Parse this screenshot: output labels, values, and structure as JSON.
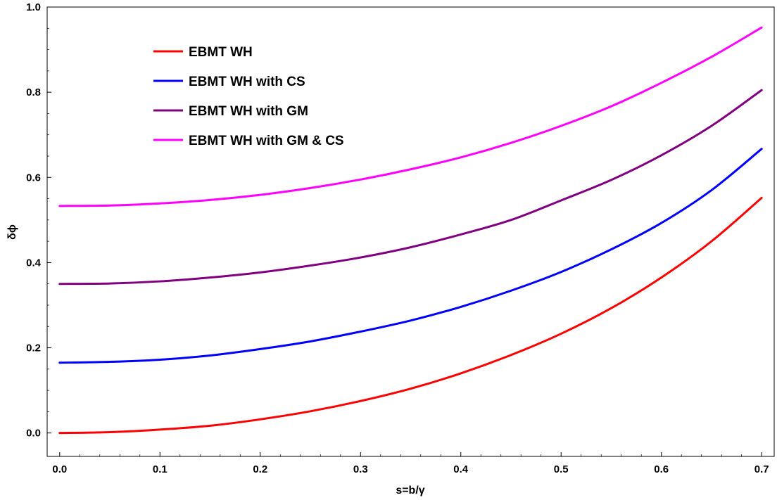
{
  "chart_data": {
    "type": "line",
    "xlabel": "s=b/γ",
    "ylabel": "δϕ",
    "xlim": [
      -0.0125,
      0.7125
    ],
    "ylim": [
      -0.055,
      1.0
    ],
    "xticks": [
      0.0,
      0.1,
      0.2,
      0.3,
      0.4,
      0.5,
      0.6,
      0.7
    ],
    "yticks": [
      0.0,
      0.2,
      0.4,
      0.6,
      0.8,
      1.0
    ],
    "xtick_labels": [
      "0.0",
      "0.1",
      "0.2",
      "0.3",
      "0.4",
      "0.5",
      "0.6",
      "0.7"
    ],
    "ytick_labels": [
      "0.0",
      "0.2",
      "0.4",
      "0.6",
      "0.8",
      "1.0"
    ],
    "grid": false,
    "legend_position": "top-left",
    "x": [
      0.0,
      0.05,
      0.1,
      0.15,
      0.2,
      0.25,
      0.3,
      0.35,
      0.4,
      0.45,
      0.5,
      0.55,
      0.6,
      0.65,
      0.7
    ],
    "series": [
      {
        "name": "EBMT WH",
        "color": "#ff0000",
        "values": [
          0.0,
          0.002,
          0.008,
          0.017,
          0.032,
          0.051,
          0.075,
          0.104,
          0.14,
          0.183,
          0.233,
          0.293,
          0.365,
          0.45,
          0.552
        ]
      },
      {
        "name": "EBMT WH with CS",
        "color": "#0000ff",
        "values": [
          0.165,
          0.167,
          0.172,
          0.182,
          0.197,
          0.215,
          0.238,
          0.264,
          0.296,
          0.334,
          0.378,
          0.431,
          0.493,
          0.57,
          0.667
        ]
      },
      {
        "name": "EBMT WH with GM",
        "color": "#800080",
        "values": [
          0.35,
          0.351,
          0.356,
          0.365,
          0.377,
          0.393,
          0.412,
          0.436,
          0.466,
          0.5,
          0.546,
          0.594,
          0.652,
          0.721,
          0.805
        ]
      },
      {
        "name": "EBMT WH with GM & CS",
        "color": "#ff00ff",
        "values": [
          0.533,
          0.534,
          0.539,
          0.547,
          0.559,
          0.575,
          0.595,
          0.619,
          0.647,
          0.681,
          0.721,
          0.767,
          0.822,
          0.883,
          0.952
        ]
      }
    ]
  }
}
